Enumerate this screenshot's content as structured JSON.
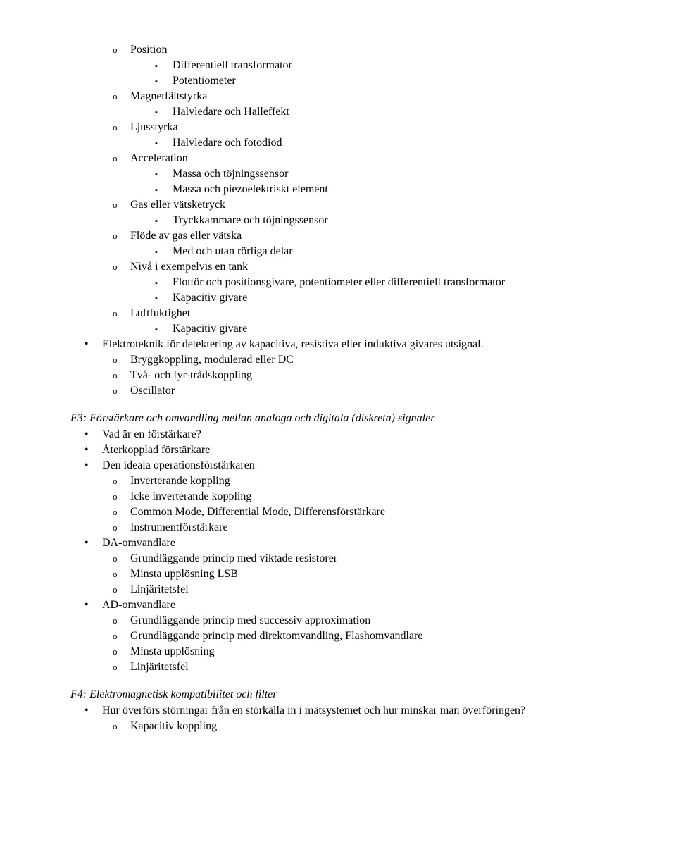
{
  "top": {
    "position": "Position",
    "diff_transformator": "Differentiell transformator",
    "potentiometer": "Potentiometer",
    "magnetfaltstyrka": "Magnetfältstyrka",
    "halvledare_halleffekt": "Halvledare och Halleffekt",
    "ljusstyrka": "Ljusstyrka",
    "halvledare_fotodiod": "Halvledare och fotodiod",
    "acceleration": "Acceleration",
    "massa_tojnings": "Massa och töjningssensor",
    "massa_piezo": "Massa och piezoelektriskt element",
    "gas_vatsketryck": "Gas eller vätsketryck",
    "tryckkammare": "Tryckkammare och töjningssensor",
    "flode_gas_vatska": "Flöde av gas eller vätska",
    "med_utan_rorliga": "Med och utan rörliga delar",
    "niva_tank": "Nivå i exempelvis en tank",
    "flottor": "Flottör och positionsgivare, potentiometer eller differentiell transformator",
    "kapacitiv_givare_1": "Kapacitiv givare",
    "luftfuktighet": "Luftfuktighet",
    "kapacitiv_givare_2": "Kapacitiv givare",
    "elektroteknik": "Elektroteknik för detektering av kapacitiva, resistiva eller induktiva givares utsignal.",
    "bryggkoppling": "Bryggkoppling, modulerad eller DC",
    "tva_fyr": "Två- och fyr-trådskoppling",
    "oscillator": "Oscillator"
  },
  "f3": {
    "heading": "F3: Förstärkare och omvandling mellan analoga och digitala (diskreta) signaler",
    "vad_forstarkare": "Vad är en förstärkare?",
    "aterkopplad": "Återkopplad förstärkare",
    "ideala_op": "Den ideala operationsförstärkaren",
    "inverterande": "Inverterande koppling",
    "icke_inverterande": "Icke inverterande koppling",
    "common_mode": "Common Mode, Differential Mode, Differensförstärkare",
    "instrumentforstarkare": "Instrumentförstärkare",
    "da_omvandlare": "DA-omvandlare",
    "da_grundlaggande": "Grundläggande princip med viktade resistorer",
    "da_minsta_upplosning": "Minsta upplösning LSB",
    "da_linjaritetsfel": "Linjäritetsfel",
    "ad_omvandlare": "AD-omvandlare",
    "ad_successiv": "Grundläggande princip med successiv approximation",
    "ad_direktomvandling": "Grundläggande princip med direktomvandling, Flashomvandlare",
    "ad_minsta_upplosning": "Minsta upplösning",
    "ad_linjaritetsfel": "Linjäritetsfel"
  },
  "f4": {
    "heading": "F4: Elektromagnetisk kompatibilitet och filter",
    "hur_overfors": "Hur överförs störningar från en störkälla in i mätsystemet och hur minskar man överföringen?",
    "kapacitiv_koppling": "Kapacitiv koppling"
  }
}
